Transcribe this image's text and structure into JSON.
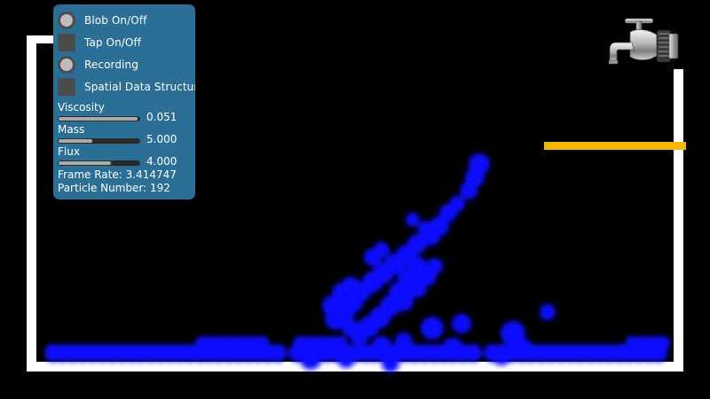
{
  "panel": {
    "toggles": [
      {
        "label": "Blob On/Off",
        "kind": "radio"
      },
      {
        "label": "Tap On/Off",
        "kind": "checkbox"
      },
      {
        "label": "Recording",
        "kind": "radio"
      },
      {
        "label": "Spatial Data Structure",
        "kind": "checkbox"
      }
    ],
    "sliders": {
      "viscosity": {
        "label": "Viscosity",
        "value": "0.051",
        "fraction": 0.98
      },
      "mass": {
        "label": "Mass",
        "value": "5.000",
        "fraction": 0.42
      },
      "flux": {
        "label": "Flux",
        "value": "4.000",
        "fraction": 0.65
      }
    },
    "frame_rate": {
      "label": "Frame Rate:",
      "value": "3.414747"
    },
    "particle_number": {
      "label": "Particle Number:",
      "value": "192"
    }
  },
  "colors": {
    "panel_bg": "#2b6e96",
    "particle": "#1010ff",
    "platform": "#f5b800",
    "wall": "#ffffff",
    "background": "#000000"
  },
  "icons": {
    "faucet": "faucet-icon"
  }
}
